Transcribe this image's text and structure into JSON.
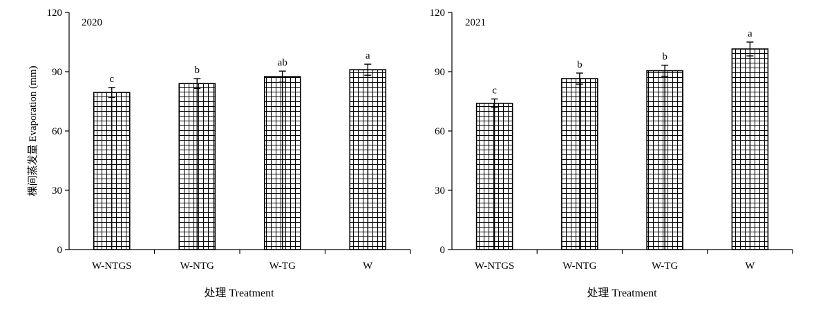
{
  "chart_data": [
    {
      "type": "bar",
      "panel_label": "2020",
      "categories": [
        "W-NTGS",
        "W-NTG",
        "W-TG",
        "W"
      ],
      "values": [
        79.5,
        84.0,
        87.5,
        91.0
      ],
      "errors": [
        2.5,
        2.5,
        2.8,
        2.8
      ],
      "significance": [
        "c",
        "b",
        "ab",
        "a"
      ],
      "xlabel": "处理 Treatment",
      "ylabel": "棵间蒸发量 Evaporation (mm)",
      "ylim": [
        0,
        120
      ],
      "yticks": [
        "0",
        "30",
        "60",
        "90",
        "120"
      ],
      "bar_pattern": "grid-hatch"
    },
    {
      "type": "bar",
      "panel_label": "2021",
      "categories": [
        "W-NTGS",
        "W-NTG",
        "W-TG",
        "W"
      ],
      "values": [
        74.0,
        86.5,
        90.5,
        101.5
      ],
      "errors": [
        2.2,
        2.8,
        2.8,
        3.5
      ],
      "significance": [
        "c",
        "b",
        "b",
        "a"
      ],
      "xlabel": "处理 Treatment",
      "ylabel": "",
      "ylim": [
        0,
        120
      ],
      "yticks": [
        "0",
        "30",
        "60",
        "90",
        "120"
      ],
      "bar_pattern": "grid-hatch"
    }
  ]
}
